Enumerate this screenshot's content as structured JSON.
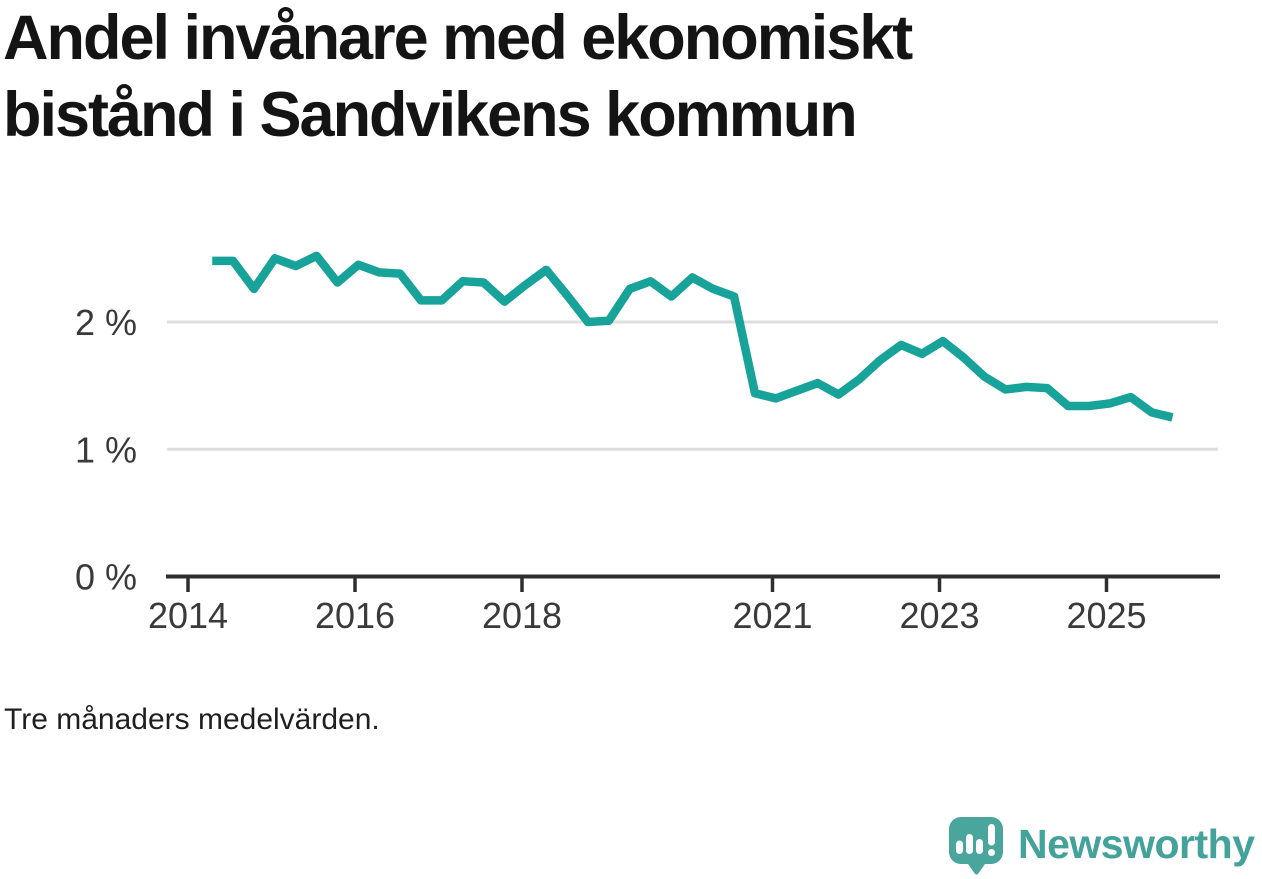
{
  "title": {
    "line1": "Andel invånare med ekonomiskt",
    "line2": "bistånd i Sandvikens kommun"
  },
  "footnote": "Tre månaders medelvärden.",
  "branding": {
    "name": "Newsworthy"
  },
  "colors": {
    "line": "#17a29a",
    "grid": "#dedede",
    "axis": "#2e2e2e",
    "tick_label": "#3a3a3a",
    "title": "#141414",
    "logo_icon": "#4aa59d",
    "logo_text": "#43a29a",
    "background": "#ffffff"
  },
  "chart_data": {
    "type": "line",
    "title": "Andel invånare med ekonomiskt bistånd i Sandvikens kommun",
    "subtitle": "",
    "note": "Tre månaders medelvärden.",
    "series_name": "Andel invånare med ekonomiskt bistånd",
    "unit": "%",
    "frequency": "quarterly",
    "x_start": "2014-Q2",
    "x_end": "2025-Q4",
    "x": [
      2014.29,
      2014.54,
      2014.79,
      2015.04,
      2015.29,
      2015.54,
      2015.79,
      2016.04,
      2016.29,
      2016.54,
      2016.79,
      2017.04,
      2017.29,
      2017.54,
      2017.79,
      2018.04,
      2018.29,
      2018.54,
      2018.79,
      2019.04,
      2019.29,
      2019.54,
      2019.79,
      2020.04,
      2020.29,
      2020.54,
      2020.79,
      2021.04,
      2021.29,
      2021.54,
      2021.79,
      2022.04,
      2022.29,
      2022.54,
      2022.79,
      2023.04,
      2023.29,
      2023.54,
      2023.79,
      2024.04,
      2024.29,
      2024.54,
      2024.79,
      2025.04,
      2025.29,
      2025.54,
      2025.79
    ],
    "values": [
      2.48,
      2.48,
      2.26,
      2.5,
      2.44,
      2.52,
      2.31,
      2.45,
      2.39,
      2.38,
      2.17,
      2.17,
      2.32,
      2.31,
      2.16,
      2.29,
      2.41,
      2.21,
      2.0,
      2.01,
      2.26,
      2.32,
      2.2,
      2.35,
      2.26,
      2.2,
      1.44,
      1.4,
      1.46,
      1.52,
      1.43,
      1.55,
      1.7,
      1.82,
      1.75,
      1.85,
      1.72,
      1.57,
      1.47,
      1.49,
      1.48,
      1.34,
      1.34,
      1.36,
      1.41,
      1.29,
      1.25
    ],
    "xlabel": "",
    "ylabel": "",
    "ylim": [
      0,
      2.7
    ],
    "xticks": [
      {
        "value": 2014,
        "label": "2014"
      },
      {
        "value": 2016,
        "label": "2016"
      },
      {
        "value": 2018,
        "label": "2018"
      },
      {
        "value": 2021,
        "label": "2021"
      },
      {
        "value": 2023,
        "label": "2023"
      },
      {
        "value": 2025,
        "label": "2025"
      }
    ],
    "yticks": [
      {
        "value": 0,
        "label": "0 %"
      },
      {
        "value": 1,
        "label": "1 %"
      },
      {
        "value": 2,
        "label": "2 %"
      }
    ],
    "grid": "horizontal",
    "legend": "none"
  }
}
